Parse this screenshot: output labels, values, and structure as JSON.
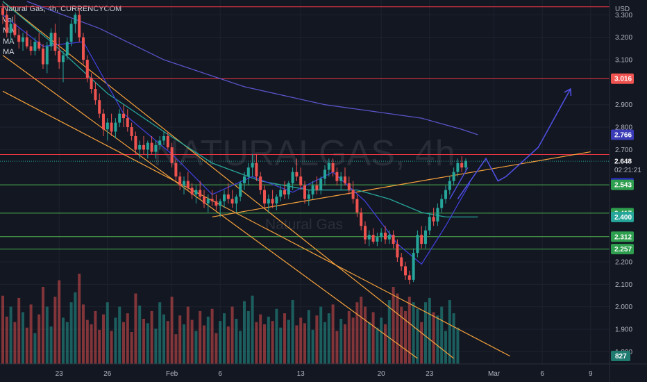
{
  "legend": {
    "symbol": "Natural Gas, 4h, CURRENCYCOM",
    "vol": "Vol",
    "ma1": "MA",
    "ma2": "MA",
    "ma3": "MA"
  },
  "watermark": {
    "main": "NATURALGAS, 4h",
    "sub": "Natural Gas"
  },
  "currency": "USD",
  "colors": {
    "background": "#131722",
    "up": "#26a69a",
    "down": "#ef5350",
    "red_line": "#f23645",
    "green_line": "#4caf50",
    "orange_line": "#f7a23b",
    "ma_fast": "#3f3fd6",
    "ma_mid": "#26a69a",
    "ma_slow": "#5b54c9",
    "projection": "#4f4fe0"
  },
  "chart_data": {
    "type": "candlestick",
    "interval": "4h",
    "y_ticks": [
      "3.300",
      "3.200",
      "3.100",
      "2.900",
      "2.800",
      "2.700",
      "2.200",
      "2.100",
      "2.000",
      "1.900",
      "1.800"
    ],
    "ylim": [
      1.77,
      3.36
    ],
    "x_ticks": [
      {
        "label": "23",
        "index": 14
      },
      {
        "label": "26",
        "index": 26
      },
      {
        "label": "Feb",
        "index": 42
      },
      {
        "label": "6",
        "index": 54
      },
      {
        "label": "13",
        "index": 74
      },
      {
        "label": "20",
        "index": 94
      },
      {
        "label": "23",
        "index": 106
      },
      {
        "label": "Mar",
        "index": 122
      },
      {
        "label": "6",
        "index": 134
      },
      {
        "label": "9",
        "index": 146
      }
    ],
    "candles": [
      [
        3.33,
        3.35,
        3.26,
        3.3
      ],
      [
        3.3,
        3.32,
        3.2,
        3.22
      ],
      [
        3.22,
        3.28,
        3.18,
        3.26
      ],
      [
        3.26,
        3.3,
        3.2,
        3.21
      ],
      [
        3.21,
        3.24,
        3.15,
        3.18
      ],
      [
        3.18,
        3.22,
        3.14,
        3.2
      ],
      [
        3.2,
        3.23,
        3.15,
        3.16
      ],
      [
        3.16,
        3.19,
        3.12,
        3.14
      ],
      [
        3.14,
        3.2,
        3.12,
        3.18
      ],
      [
        3.18,
        3.22,
        3.14,
        3.15
      ],
      [
        3.15,
        3.17,
        3.06,
        3.08
      ],
      [
        3.08,
        3.18,
        3.04,
        3.16
      ],
      [
        3.16,
        3.24,
        3.14,
        3.22
      ],
      [
        3.22,
        3.26,
        3.12,
        3.14
      ],
      [
        3.14,
        3.2,
        3.06,
        3.09
      ],
      [
        3.09,
        3.14,
        3.0,
        3.12
      ],
      [
        3.12,
        3.2,
        3.1,
        3.18
      ],
      [
        3.18,
        3.28,
        3.16,
        3.26
      ],
      [
        3.26,
        3.31,
        3.22,
        3.3
      ],
      [
        3.3,
        3.33,
        3.18,
        3.2
      ],
      [
        3.2,
        3.22,
        3.08,
        3.1
      ],
      [
        3.1,
        3.12,
        3.0,
        3.02
      ],
      [
        3.02,
        3.04,
        2.95,
        2.97
      ],
      [
        2.97,
        3.0,
        2.9,
        2.92
      ],
      [
        2.92,
        2.95,
        2.84,
        2.86
      ],
      [
        2.86,
        2.88,
        2.76,
        2.79
      ],
      [
        2.79,
        2.84,
        2.74,
        2.82
      ],
      [
        2.82,
        2.86,
        2.76,
        2.78
      ],
      [
        2.78,
        2.84,
        2.75,
        2.82
      ],
      [
        2.82,
        2.88,
        2.8,
        2.86
      ],
      [
        2.86,
        2.9,
        2.8,
        2.84
      ],
      [
        2.84,
        2.88,
        2.78,
        2.8
      ],
      [
        2.8,
        2.82,
        2.74,
        2.76
      ],
      [
        2.76,
        2.78,
        2.68,
        2.7
      ],
      [
        2.7,
        2.74,
        2.66,
        2.72
      ],
      [
        2.72,
        2.76,
        2.68,
        2.7
      ],
      [
        2.7,
        2.74,
        2.66,
        2.73
      ],
      [
        2.73,
        2.76,
        2.68,
        2.69
      ],
      [
        2.69,
        2.74,
        2.66,
        2.72
      ],
      [
        2.72,
        2.76,
        2.7,
        2.74
      ],
      [
        2.74,
        2.78,
        2.72,
        2.76
      ],
      [
        2.76,
        2.78,
        2.7,
        2.71
      ],
      [
        2.71,
        2.73,
        2.62,
        2.64
      ],
      [
        2.64,
        2.66,
        2.56,
        2.58
      ],
      [
        2.58,
        2.6,
        2.52,
        2.54
      ],
      [
        2.54,
        2.58,
        2.5,
        2.56
      ],
      [
        2.56,
        2.6,
        2.52,
        2.53
      ],
      [
        2.53,
        2.55,
        2.48,
        2.5
      ],
      [
        2.5,
        2.54,
        2.46,
        2.52
      ],
      [
        2.52,
        2.56,
        2.48,
        2.49
      ],
      [
        2.49,
        2.52,
        2.44,
        2.46
      ],
      [
        2.46,
        2.5,
        2.42,
        2.48
      ],
      [
        2.48,
        2.52,
        2.45,
        2.47
      ],
      [
        2.47,
        2.5,
        2.43,
        2.45
      ],
      [
        2.45,
        2.48,
        2.4,
        2.47
      ],
      [
        2.47,
        2.52,
        2.44,
        2.5
      ],
      [
        2.5,
        2.55,
        2.46,
        2.48
      ],
      [
        2.48,
        2.52,
        2.44,
        2.46
      ],
      [
        2.46,
        2.5,
        2.42,
        2.49
      ],
      [
        2.49,
        2.56,
        2.47,
        2.55
      ],
      [
        2.55,
        2.6,
        2.52,
        2.58
      ],
      [
        2.58,
        2.64,
        2.54,
        2.62
      ],
      [
        2.62,
        2.68,
        2.58,
        2.64
      ],
      [
        2.64,
        2.68,
        2.56,
        2.58
      ],
      [
        2.58,
        2.6,
        2.5,
        2.52
      ],
      [
        2.52,
        2.54,
        2.44,
        2.46
      ],
      [
        2.46,
        2.5,
        2.42,
        2.48
      ],
      [
        2.48,
        2.52,
        2.44,
        2.46
      ],
      [
        2.46,
        2.5,
        2.43,
        2.49
      ],
      [
        2.49,
        2.54,
        2.47,
        2.52
      ],
      [
        2.52,
        2.56,
        2.48,
        2.5
      ],
      [
        2.5,
        2.56,
        2.48,
        2.55
      ],
      [
        2.55,
        2.62,
        2.52,
        2.6
      ],
      [
        2.6,
        2.66,
        2.56,
        2.58
      ],
      [
        2.58,
        2.62,
        2.52,
        2.54
      ],
      [
        2.54,
        2.56,
        2.46,
        2.48
      ],
      [
        2.48,
        2.52,
        2.45,
        2.5
      ],
      [
        2.5,
        2.56,
        2.48,
        2.54
      ],
      [
        2.54,
        2.58,
        2.5,
        2.52
      ],
      [
        2.52,
        2.58,
        2.5,
        2.57
      ],
      [
        2.57,
        2.63,
        2.54,
        2.61
      ],
      [
        2.61,
        2.66,
        2.58,
        2.64
      ],
      [
        2.64,
        2.66,
        2.58,
        2.6
      ],
      [
        2.6,
        2.62,
        2.54,
        2.56
      ],
      [
        2.56,
        2.6,
        2.52,
        2.58
      ],
      [
        2.58,
        2.62,
        2.54,
        2.55
      ],
      [
        2.55,
        2.58,
        2.5,
        2.52
      ],
      [
        2.52,
        2.56,
        2.46,
        2.48
      ],
      [
        2.48,
        2.5,
        2.4,
        2.42
      ],
      [
        2.42,
        2.44,
        2.34,
        2.36
      ],
      [
        2.36,
        2.38,
        2.28,
        2.3
      ],
      [
        2.3,
        2.34,
        2.27,
        2.32
      ],
      [
        2.32,
        2.35,
        2.28,
        2.29
      ],
      [
        2.29,
        2.33,
        2.27,
        2.31
      ],
      [
        2.31,
        2.35,
        2.29,
        2.33
      ],
      [
        2.33,
        2.36,
        2.28,
        2.3
      ],
      [
        2.3,
        2.34,
        2.28,
        2.32
      ],
      [
        2.32,
        2.34,
        2.26,
        2.28
      ],
      [
        2.28,
        2.3,
        2.2,
        2.22
      ],
      [
        2.22,
        2.24,
        2.16,
        2.18
      ],
      [
        2.18,
        2.2,
        2.12,
        2.14
      ],
      [
        2.14,
        2.16,
        2.1,
        2.12
      ],
      [
        2.12,
        2.26,
        2.11,
        2.24
      ],
      [
        2.24,
        2.34,
        2.22,
        2.32
      ],
      [
        2.32,
        2.36,
        2.26,
        2.28
      ],
      [
        2.28,
        2.36,
        2.26,
        2.34
      ],
      [
        2.34,
        2.42,
        2.32,
        2.4
      ],
      [
        2.4,
        2.44,
        2.36,
        2.38
      ],
      [
        2.38,
        2.46,
        2.36,
        2.44
      ],
      [
        2.44,
        2.5,
        2.42,
        2.48
      ],
      [
        2.48,
        2.54,
        2.46,
        2.52
      ],
      [
        2.52,
        2.58,
        2.5,
        2.56
      ],
      [
        2.56,
        2.62,
        2.54,
        2.6
      ],
      [
        2.6,
        2.66,
        2.58,
        2.64
      ],
      [
        2.64,
        2.67,
        2.6,
        2.62
      ],
      [
        2.62,
        2.66,
        2.6,
        2.65
      ]
    ],
    "volumes": [
      620,
      430,
      520,
      380,
      600,
      470,
      330,
      540,
      280,
      450,
      700,
      520,
      340,
      610,
      760,
      420,
      380,
      560,
      650,
      820,
      540,
      400,
      360,
      480,
      310,
      450,
      560,
      300,
      420,
      520,
      380,
      460,
      290,
      640,
      530,
      410,
      370,
      480,
      320,
      560,
      450,
      390,
      610,
      270,
      440,
      360,
      520,
      400,
      300,
      480,
      350,
      430,
      500,
      280,
      390,
      460,
      340,
      520,
      410,
      300,
      570,
      480,
      620,
      380,
      450,
      360,
      430,
      390,
      500,
      330,
      460,
      400,
      580,
      350,
      420,
      370,
      490,
      310,
      440,
      520,
      380,
      460,
      540,
      300,
      410,
      360,
      480,
      420,
      560,
      610,
      520,
      380,
      470,
      330,
      420,
      360,
      580,
      700,
      640,
      520,
      480,
      610,
      560,
      500,
      380,
      560,
      600,
      470,
      440,
      520,
      300,
      580,
      460,
      330
    ],
    "volume_label": "827",
    "current_price": "2.648",
    "countdown": "02:21:21",
    "price_tags": [
      {
        "label": "3.016",
        "value": 3.016,
        "kind": "red"
      },
      {
        "label": "2.766",
        "value": 2.766,
        "kind": "ma_slow"
      },
      {
        "label": "2.648",
        "value": 2.648,
        "kind": "current"
      },
      {
        "label": "2.551",
        "value": 2.551,
        "kind": "ma_fast"
      },
      {
        "label": "2.543",
        "value": 2.543,
        "kind": "green"
      },
      {
        "label": "2.417",
        "value": 2.417,
        "kind": "green"
      },
      {
        "label": "2.400",
        "value": 2.4,
        "kind": "ma_mid"
      },
      {
        "label": "2.312",
        "value": 2.312,
        "kind": "green"
      },
      {
        "label": "2.257",
        "value": 2.257,
        "kind": "green"
      }
    ],
    "horizontal_lines": [
      {
        "value": 3.336,
        "kind": "red"
      },
      {
        "value": 3.016,
        "kind": "red"
      },
      {
        "value": 2.678,
        "kind": "red"
      },
      {
        "value": 2.543,
        "kind": "green"
      },
      {
        "value": 2.417,
        "kind": "green"
      },
      {
        "value": 2.312,
        "kind": "green"
      },
      {
        "value": 2.257,
        "kind": "green"
      }
    ],
    "trend_lines": [
      {
        "from": [
          0,
          3.36
        ],
        "to": [
          112,
          1.77
        ]
      },
      {
        "from": [
          0,
          3.12
        ],
        "to": [
          103,
          1.77
        ]
      },
      {
        "from": [
          0,
          2.96
        ],
        "to": [
          126,
          1.78
        ]
      },
      {
        "from": [
          52,
          2.4
        ],
        "to": [
          146,
          2.69
        ]
      }
    ],
    "ma_slow": [
      [
        6,
        3.36
      ],
      [
        24,
        3.24
      ],
      [
        40,
        3.1
      ],
      [
        60,
        2.98
      ],
      [
        80,
        2.9
      ],
      [
        96,
        2.86
      ],
      [
        104,
        2.84
      ],
      [
        114,
        2.79
      ],
      [
        118,
        2.766
      ]
    ],
    "ma_mid": [
      [
        0,
        3.36
      ],
      [
        12,
        3.18
      ],
      [
        26,
        2.95
      ],
      [
        40,
        2.78
      ],
      [
        52,
        2.64
      ],
      [
        64,
        2.56
      ],
      [
        76,
        2.52
      ],
      [
        88,
        2.52
      ],
      [
        96,
        2.48
      ],
      [
        104,
        2.42
      ],
      [
        110,
        2.4
      ],
      [
        118,
        2.4
      ]
    ],
    "ma_fast": [
      [
        0,
        3.3
      ],
      [
        10,
        3.16
      ],
      [
        20,
        3.18
      ],
      [
        30,
        2.86
      ],
      [
        42,
        2.68
      ],
      [
        52,
        2.5
      ],
      [
        62,
        2.58
      ],
      [
        72,
        2.51
      ],
      [
        82,
        2.6
      ],
      [
        90,
        2.47
      ],
      [
        98,
        2.28
      ],
      [
        104,
        2.19
      ],
      [
        110,
        2.36
      ],
      [
        116,
        2.55
      ]
    ],
    "projection": [
      [
        113,
        2.48
      ],
      [
        120,
        2.66
      ],
      [
        123,
        2.56
      ],
      [
        125,
        2.58
      ],
      [
        133,
        2.71
      ],
      [
        141,
        2.97
      ]
    ]
  }
}
